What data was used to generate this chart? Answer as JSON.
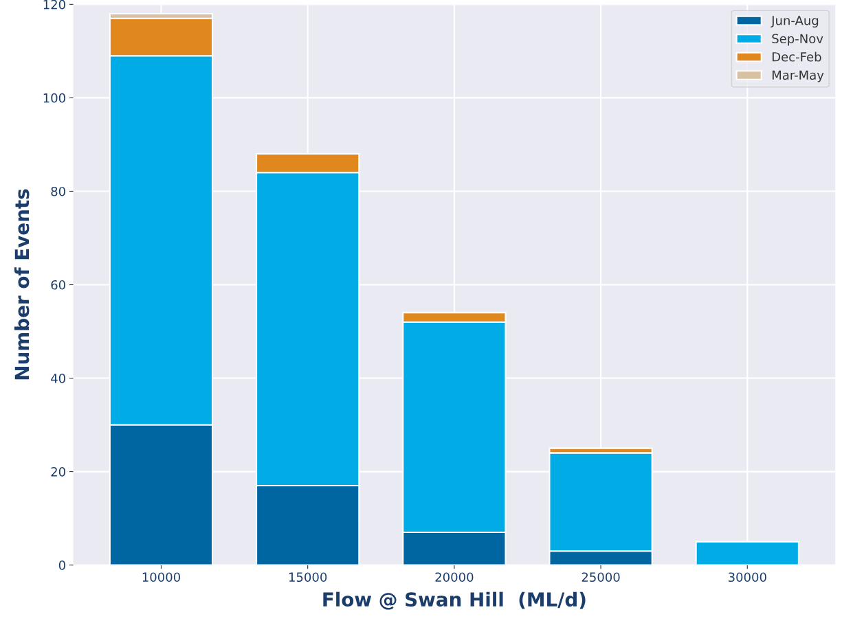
{
  "chart_data": {
    "type": "bar",
    "stacked": true,
    "xlabel": "Flow @ Swan Hill  (ML/d)",
    "ylabel": "Number of Events",
    "categories": [
      "10000",
      "15000",
      "20000",
      "25000",
      "30000"
    ],
    "series": [
      {
        "name": "Jun-Aug",
        "color": "#0066a2",
        "values": [
          30,
          17,
          7,
          3,
          0
        ]
      },
      {
        "name": "Sep-Nov",
        "color": "#00abe6",
        "values": [
          79,
          67,
          45,
          21,
          5
        ]
      },
      {
        "name": "Dec-Feb",
        "color": "#e0881e",
        "values": [
          8,
          4,
          2,
          1,
          0
        ]
      },
      {
        "name": "Mar-May",
        "color": "#d8c0a2",
        "values": [
          1,
          0,
          0,
          0,
          0
        ]
      }
    ],
    "ylim": [
      0,
      120
    ],
    "yticks": [
      0,
      20,
      40,
      60,
      80,
      100,
      120
    ],
    "grid": true,
    "legend": "top right"
  }
}
